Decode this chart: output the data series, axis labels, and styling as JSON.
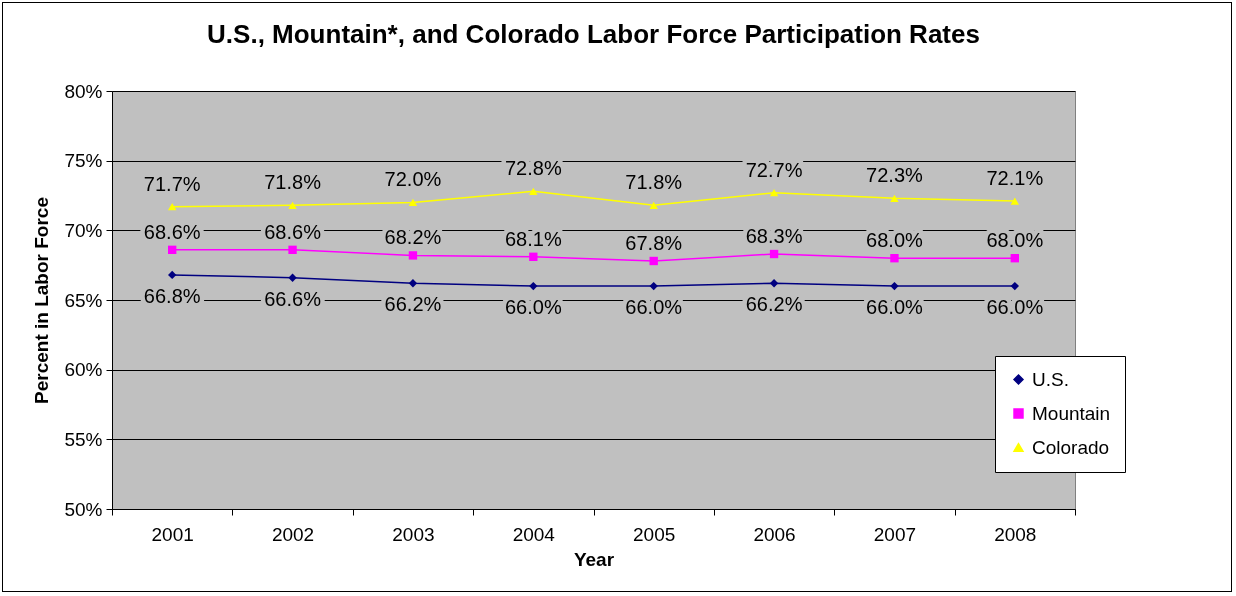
{
  "chart_data": {
    "type": "line",
    "title": "U.S., Mountain*, and Colorado Labor Force Participation Rates",
    "xlabel": "Year",
    "ylabel": "Percent in Labor Force",
    "categories": [
      "2001",
      "2002",
      "2003",
      "2004",
      "2005",
      "2006",
      "2007",
      "2008"
    ],
    "series": [
      {
        "name": "U.S.",
        "color": "#000080",
        "marker": "diamond",
        "values": [
          66.8,
          66.6,
          66.2,
          66.0,
          66.0,
          66.2,
          66.0,
          66.0
        ],
        "value_labels": [
          "66.8%",
          "66.6%",
          "66.2%",
          "66.0%",
          "66.0%",
          "66.2%",
          "66.0%",
          "66.0%"
        ]
      },
      {
        "name": "Mountain",
        "color": "#ff00ff",
        "marker": "square",
        "values": [
          68.6,
          68.6,
          68.2,
          68.1,
          67.8,
          68.3,
          68.0,
          68.0
        ],
        "value_labels": [
          "68.6%",
          "68.6%",
          "68.2%",
          "68.1%",
          "67.8%",
          "68.3%",
          "68.0%",
          "68.0%"
        ]
      },
      {
        "name": "Colorado",
        "color": "#ffff00",
        "marker": "triangle",
        "values": [
          71.7,
          71.8,
          72.0,
          72.8,
          71.8,
          72.7,
          72.3,
          72.1
        ],
        "value_labels": [
          "71.7%",
          "71.8%",
          "72.0%",
          "72.8%",
          "71.8%",
          "72.7%",
          "72.3%",
          "72.1%"
        ]
      }
    ],
    "ylim": [
      50,
      80
    ],
    "yticks": [
      {
        "value": 50,
        "label": "50%"
      },
      {
        "value": 55,
        "label": "55%"
      },
      {
        "value": 60,
        "label": "60%"
      },
      {
        "value": 65,
        "label": "65%"
      },
      {
        "value": 70,
        "label": "70%"
      },
      {
        "value": 75,
        "label": "75%"
      },
      {
        "value": 80,
        "label": "80%"
      }
    ],
    "grid": "y",
    "legend": "right"
  }
}
